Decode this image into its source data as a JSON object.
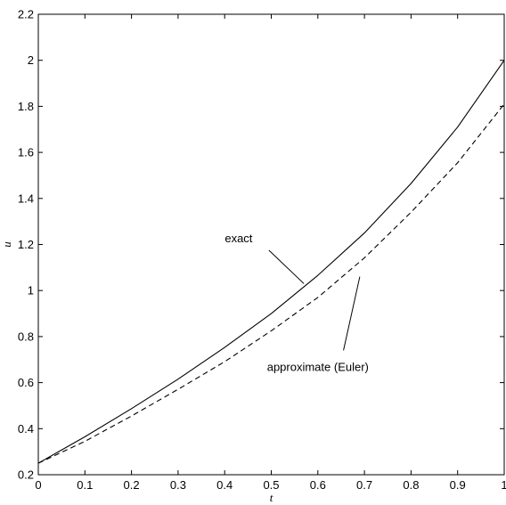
{
  "chart_data": {
    "type": "line",
    "title": "",
    "xlabel": "t",
    "ylabel": "u",
    "xlim": [
      0,
      1
    ],
    "ylim": [
      0.2,
      2.2
    ],
    "x_ticks": [
      "0",
      "0.1",
      "0.2",
      "0.3",
      "0.4",
      "0.5",
      "0.6",
      "0.7",
      "0.8",
      "0.9",
      "1"
    ],
    "y_ticks": [
      "0.2",
      "0.4",
      "0.6",
      "0.8",
      "1",
      "1.2",
      "1.4",
      "1.6",
      "1.8",
      "2",
      "2.2"
    ],
    "grid": false,
    "x": [
      0,
      0.1,
      0.2,
      0.3,
      0.4,
      0.5,
      0.6,
      0.7,
      0.8,
      0.9,
      1.0
    ],
    "series": [
      {
        "name": "exact",
        "style": "solid",
        "color": "#000000",
        "values": [
          0.25,
          0.365,
          0.487,
          0.615,
          0.753,
          0.9,
          1.066,
          1.25,
          1.465,
          1.71,
          2.0
        ]
      },
      {
        "name": "approximate (Euler)",
        "style": "dashed",
        "color": "#000000",
        "values": [
          0.25,
          0.345,
          0.455,
          0.571,
          0.691,
          0.825,
          0.97,
          1.142,
          1.34,
          1.555,
          1.81
        ]
      }
    ],
    "annotations": [
      {
        "text": "exact",
        "series": 0,
        "text_at": [
          0.43,
          1.21
        ],
        "line_from": [
          0.495,
          1.175
        ],
        "line_to": [
          0.57,
          1.03
        ]
      },
      {
        "text": "approximate (Euler)",
        "series": 1,
        "text_at": [
          0.6,
          0.65
        ],
        "line_from": [
          0.655,
          0.74
        ],
        "line_to": [
          0.69,
          1.06
        ]
      }
    ]
  }
}
